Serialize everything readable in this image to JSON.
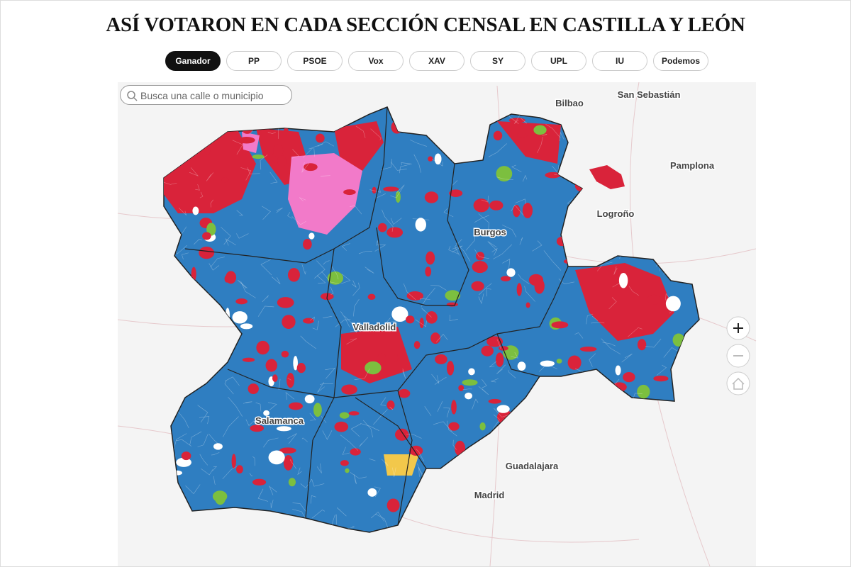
{
  "header": {
    "title": "ASÍ VOTARON EN CADA SECCIÓN CENSAL EN CASTILLA Y LEÓN"
  },
  "tabs": [
    {
      "label": "Ganador",
      "active": true
    },
    {
      "label": "PP"
    },
    {
      "label": "PSOE"
    },
    {
      "label": "Vox"
    },
    {
      "label": "XAV"
    },
    {
      "label": "SY"
    },
    {
      "label": "UPL"
    },
    {
      "label": "IU"
    },
    {
      "label": "Podemos"
    }
  ],
  "search": {
    "placeholder": "Busca una calle o municipio"
  },
  "places": [
    {
      "name": "Bilbao"
    },
    {
      "name": "San Sebastián"
    },
    {
      "name": "Pamplona"
    },
    {
      "name": "Logroño"
    },
    {
      "name": "Burgos"
    },
    {
      "name": "Valladolid"
    },
    {
      "name": "Salamanca"
    },
    {
      "name": "Guadalajara"
    },
    {
      "name": "Madrid"
    }
  ]
}
